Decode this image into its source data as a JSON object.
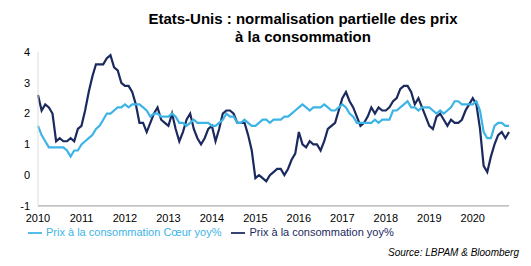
{
  "chart_data": {
    "type": "line",
    "title": "Etats-Unis : normalisation partielle des prix à la consommation",
    "annotations": [
      "Source: LBPAM & Bloomberg"
    ],
    "categories": [
      "2010",
      null,
      null,
      null,
      null,
      null,
      null,
      null,
      null,
      null,
      null,
      null,
      "2011",
      null,
      null,
      null,
      null,
      null,
      null,
      null,
      null,
      null,
      null,
      null,
      "2012",
      null,
      null,
      null,
      null,
      null,
      null,
      null,
      null,
      null,
      null,
      null,
      "2013",
      null,
      null,
      null,
      null,
      null,
      null,
      null,
      null,
      null,
      null,
      null,
      "2014",
      null,
      null,
      null,
      null,
      null,
      null,
      null,
      null,
      null,
      null,
      null,
      "2015",
      null,
      null,
      null,
      null,
      null,
      null,
      null,
      null,
      null,
      null,
      null,
      "2016",
      null,
      null,
      null,
      null,
      null,
      null,
      null,
      null,
      null,
      null,
      null,
      "2017",
      null,
      null,
      null,
      null,
      null,
      null,
      null,
      null,
      null,
      null,
      null,
      "2018",
      null,
      null,
      null,
      null,
      null,
      null,
      null,
      null,
      null,
      null,
      null,
      "2019",
      null,
      null,
      null,
      null,
      null,
      null,
      null,
      null,
      null,
      null,
      null,
      "2020",
      null,
      null,
      null,
      null,
      null,
      null,
      null,
      null,
      null,
      null
    ],
    "series": [
      {
        "name": "Prix à la consommation yoy%",
        "color": "#1b2a5e",
        "values": [
          2.6,
          2.1,
          2.3,
          2.2,
          2.0,
          1.1,
          1.2,
          1.1,
          1.1,
          1.2,
          1.1,
          1.5,
          1.6,
          2.1,
          2.7,
          3.2,
          3.6,
          3.6,
          3.6,
          3.8,
          3.9,
          3.5,
          3.4,
          3.0,
          2.9,
          2.9,
          2.7,
          2.3,
          1.7,
          1.7,
          1.4,
          1.7,
          2.0,
          2.2,
          1.8,
          1.7,
          1.6,
          2.0,
          1.5,
          1.1,
          1.4,
          1.8,
          2.0,
          1.5,
          1.2,
          1.0,
          1.2,
          1.5,
          1.6,
          1.1,
          1.5,
          2.0,
          2.1,
          2.1,
          2.0,
          1.7,
          1.7,
          1.7,
          1.3,
          0.8,
          -0.1,
          0.0,
          -0.1,
          -0.2,
          0.0,
          0.1,
          0.2,
          0.2,
          0.0,
          0.2,
          0.5,
          0.7,
          1.4,
          1.0,
          0.9,
          1.1,
          1.0,
          1.0,
          0.8,
          1.1,
          1.5,
          1.6,
          1.7,
          2.1,
          2.5,
          2.7,
          2.4,
          2.2,
          1.9,
          1.6,
          1.7,
          1.9,
          2.2,
          2.0,
          2.2,
          2.1,
          2.1,
          2.2,
          2.4,
          2.5,
          2.8,
          2.9,
          2.9,
          2.7,
          2.3,
          2.5,
          2.2,
          1.9,
          1.6,
          1.5,
          1.9,
          2.0,
          1.8,
          1.6,
          1.8,
          1.7,
          1.7,
          1.8,
          2.1,
          2.3,
          2.5,
          2.3,
          1.5,
          0.3,
          0.1,
          0.6,
          1.0,
          1.3,
          1.4,
          1.2,
          1.4
        ]
      },
      {
        "name": "Prix à la consommation Cœur yoy%",
        "color": "#3cb4e6",
        "values": [
          1.6,
          1.3,
          1.1,
          0.9,
          0.9,
          0.9,
          0.9,
          0.9,
          0.8,
          0.6,
          0.8,
          0.8,
          1.0,
          1.1,
          1.2,
          1.3,
          1.5,
          1.6,
          1.8,
          2.0,
          2.0,
          2.1,
          2.2,
          2.2,
          2.3,
          2.2,
          2.3,
          2.3,
          2.3,
          2.2,
          2.1,
          1.9,
          2.0,
          2.0,
          1.9,
          1.9,
          1.9,
          2.0,
          1.9,
          1.7,
          1.7,
          1.6,
          1.7,
          1.8,
          1.7,
          1.7,
          1.7,
          1.7,
          1.6,
          1.6,
          1.7,
          1.8,
          2.0,
          1.9,
          1.9,
          1.7,
          1.7,
          1.8,
          1.7,
          1.6,
          1.6,
          1.7,
          1.8,
          1.8,
          1.7,
          1.8,
          1.8,
          1.8,
          1.9,
          1.9,
          2.0,
          2.1,
          2.2,
          2.3,
          2.2,
          2.1,
          2.2,
          2.2,
          2.2,
          2.3,
          2.2,
          2.1,
          2.1,
          2.2,
          2.3,
          2.2,
          2.0,
          1.9,
          1.7,
          1.7,
          1.7,
          1.7,
          1.7,
          1.8,
          1.7,
          1.8,
          1.8,
          1.8,
          2.1,
          2.1,
          2.2,
          2.3,
          2.4,
          2.2,
          2.2,
          2.1,
          2.2,
          2.2,
          2.2,
          2.1,
          2.0,
          2.1,
          2.0,
          2.1,
          2.2,
          2.4,
          2.4,
          2.3,
          2.3,
          2.3,
          2.3,
          2.4,
          2.1,
          1.4,
          1.2,
          1.2,
          1.6,
          1.7,
          1.7,
          1.6,
          1.6
        ]
      }
    ],
    "ylim": [
      -1,
      4
    ],
    "yticks": [
      -1,
      0,
      1,
      2,
      3,
      4
    ],
    "grid": false,
    "legend": "bottom"
  }
}
